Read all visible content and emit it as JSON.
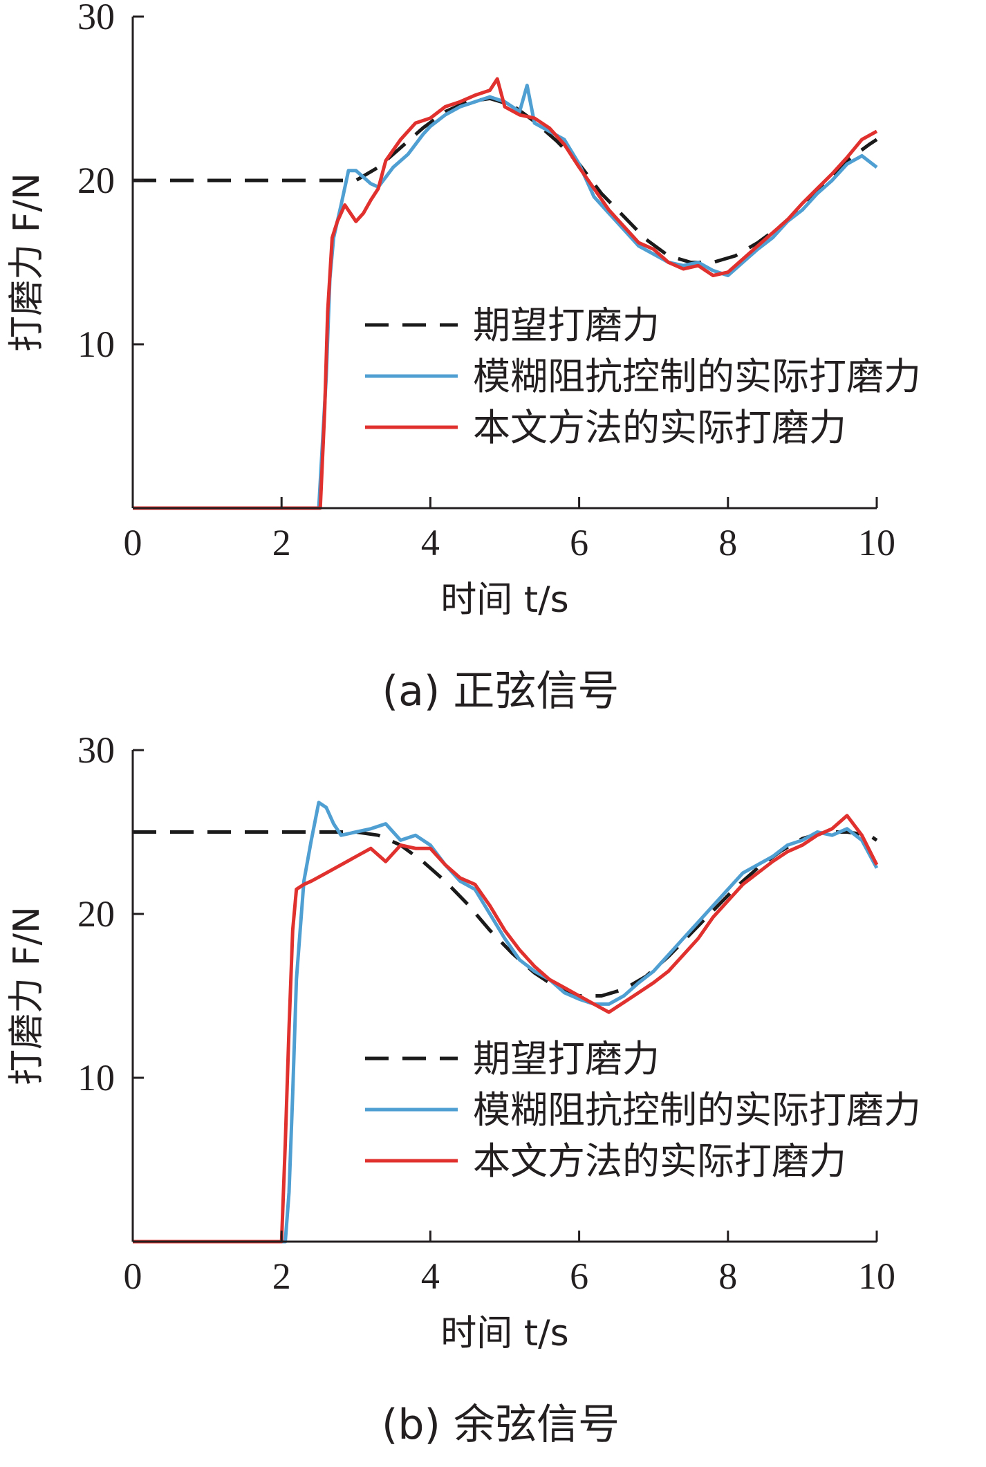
{
  "chart_data": [
    {
      "type": "line",
      "caption": "(a) 正弦信号",
      "xlabel": "时间 t/s",
      "ylabel": "打磨力 F/N",
      "xlim": [
        0,
        10
      ],
      "ylim": [
        0,
        30
      ],
      "xticks": [
        "0",
        "2",
        "4",
        "6",
        "8",
        "10"
      ],
      "yticks": [
        "10",
        "20",
        "30"
      ],
      "legend_position": "center-right",
      "series": [
        {
          "name": "期望打磨力",
          "color": "#1a1a1a",
          "style": "dashed",
          "x": [
            0,
            3.0,
            3.3,
            3.6,
            3.9,
            4.2,
            4.5,
            4.8,
            5.1,
            5.4,
            5.7,
            6.0,
            6.3,
            6.6,
            6.9,
            7.2,
            7.5,
            7.8,
            8.1,
            8.4,
            8.7,
            9.0,
            9.3,
            9.6,
            9.9,
            10.0
          ],
          "y": [
            20,
            20,
            20.8,
            22.0,
            23.2,
            24.2,
            24.8,
            25.0,
            24.6,
            23.6,
            22.4,
            21.0,
            19.2,
            17.8,
            16.4,
            15.4,
            15.0,
            15.0,
            15.4,
            16.2,
            17.2,
            18.4,
            19.8,
            21.2,
            22.2,
            22.5
          ]
        },
        {
          "name": "模糊阻抗控制的实际打磨力",
          "color": "#4f9fd3",
          "style": "solid",
          "x": [
            0,
            2.5,
            2.6,
            2.65,
            2.7,
            2.8,
            2.9,
            3.0,
            3.1,
            3.2,
            3.3,
            3.5,
            3.7,
            3.9,
            4.0,
            4.2,
            4.4,
            4.6,
            4.8,
            5.0,
            5.2,
            5.3,
            5.4,
            5.6,
            5.8,
            6.0,
            6.2,
            6.4,
            6.6,
            6.8,
            7.0,
            7.2,
            7.4,
            7.6,
            7.8,
            8.0,
            8.2,
            8.4,
            8.6,
            8.8,
            9.0,
            9.2,
            9.4,
            9.6,
            9.8,
            10.0
          ],
          "y": [
            0,
            0,
            8,
            14,
            16.5,
            18.5,
            20.6,
            20.6,
            20.2,
            19.8,
            19.6,
            20.8,
            21.6,
            22.8,
            23.3,
            24.0,
            24.5,
            24.8,
            25.1,
            24.8,
            24.2,
            25.8,
            23.5,
            23.0,
            22.5,
            21.0,
            19.0,
            18.0,
            17.0,
            16.0,
            15.5,
            15.0,
            14.8,
            15.0,
            14.5,
            14.2,
            15.0,
            15.8,
            16.5,
            17.5,
            18.2,
            19.2,
            20.0,
            21.0,
            21.5,
            20.8
          ]
        },
        {
          "name": "本文方法的实际打磨力",
          "color": "#e0312e",
          "style": "solid",
          "x": [
            0,
            2.52,
            2.58,
            2.62,
            2.68,
            2.75,
            2.85,
            3.0,
            3.1,
            3.2,
            3.3,
            3.4,
            3.6,
            3.8,
            4.0,
            4.2,
            4.4,
            4.6,
            4.8,
            4.9,
            5.0,
            5.2,
            5.4,
            5.6,
            5.8,
            6.0,
            6.2,
            6.4,
            6.6,
            6.8,
            7.0,
            7.2,
            7.4,
            7.6,
            7.8,
            8.0,
            8.2,
            8.4,
            8.6,
            8.8,
            9.0,
            9.2,
            9.4,
            9.6,
            9.8,
            10.0
          ],
          "y": [
            0,
            0,
            6,
            12,
            16.5,
            17.5,
            18.5,
            17.5,
            18.0,
            18.8,
            19.5,
            21.2,
            22.5,
            23.5,
            23.8,
            24.5,
            24.8,
            25.2,
            25.5,
            26.2,
            24.5,
            24.0,
            23.8,
            23.2,
            22.2,
            20.8,
            19.5,
            18.2,
            17.2,
            16.2,
            15.8,
            15.0,
            14.6,
            14.8,
            14.2,
            14.4,
            15.2,
            16.0,
            16.8,
            17.6,
            18.6,
            19.5,
            20.4,
            21.4,
            22.5,
            23.0
          ]
        }
      ]
    },
    {
      "type": "line",
      "caption": "(b) 余弦信号",
      "xlabel": "时间 t/s",
      "ylabel": "打磨力 F/N",
      "xlim": [
        0,
        10
      ],
      "ylim": [
        0,
        30
      ],
      "xticks": [
        "0",
        "2",
        "4",
        "6",
        "8",
        "10"
      ],
      "yticks": [
        "10",
        "20",
        "30"
      ],
      "legend_position": "center-right",
      "series": [
        {
          "name": "期望打磨力",
          "color": "#1a1a1a",
          "style": "dashed",
          "x": [
            0,
            3.0,
            3.3,
            3.6,
            3.9,
            4.2,
            4.5,
            4.8,
            5.1,
            5.4,
            5.7,
            6.0,
            6.3,
            6.6,
            6.9,
            7.2,
            7.5,
            7.8,
            8.1,
            8.4,
            8.7,
            9.0,
            9.3,
            9.6,
            9.9,
            10.0
          ],
          "y": [
            25,
            25,
            24.8,
            24.2,
            23.2,
            22.0,
            20.6,
            19.0,
            17.6,
            16.4,
            15.5,
            15.0,
            15.0,
            15.4,
            16.2,
            17.4,
            18.8,
            20.2,
            21.6,
            22.8,
            23.8,
            24.6,
            25.0,
            25.0,
            24.8,
            24.5
          ]
        },
        {
          "name": "模糊阻抗控制的实际打磨力",
          "color": "#4f9fd3",
          "style": "solid",
          "x": [
            0,
            2.05,
            2.1,
            2.15,
            2.2,
            2.3,
            2.4,
            2.5,
            2.6,
            2.7,
            2.8,
            3.0,
            3.2,
            3.4,
            3.6,
            3.8,
            4.0,
            4.2,
            4.4,
            4.6,
            4.8,
            5.0,
            5.2,
            5.4,
            5.6,
            5.8,
            6.0,
            6.2,
            6.4,
            6.6,
            6.8,
            7.0,
            7.2,
            7.4,
            7.6,
            7.8,
            8.0,
            8.2,
            8.4,
            8.6,
            8.8,
            9.0,
            9.2,
            9.4,
            9.6,
            9.8,
            10.0
          ],
          "y": [
            0,
            0,
            3,
            9,
            16,
            22,
            24.5,
            26.8,
            26.5,
            25.5,
            24.8,
            25.0,
            25.2,
            25.5,
            24.5,
            24.8,
            24.2,
            23.0,
            22.0,
            21.5,
            20.0,
            18.5,
            17.2,
            16.5,
            16.0,
            15.2,
            14.8,
            14.5,
            14.5,
            15.0,
            15.8,
            16.5,
            17.5,
            18.5,
            19.5,
            20.5,
            21.5,
            22.5,
            23.0,
            23.5,
            24.2,
            24.5,
            25.0,
            24.8,
            25.2,
            24.5,
            22.8
          ]
        },
        {
          "name": "本文方法的实际打磨力",
          "color": "#e0312e",
          "style": "solid",
          "x": [
            0,
            2.0,
            2.05,
            2.1,
            2.15,
            2.2,
            2.3,
            2.4,
            2.6,
            2.8,
            3.0,
            3.2,
            3.4,
            3.6,
            3.8,
            4.0,
            4.2,
            4.4,
            4.6,
            4.8,
            5.0,
            5.2,
            5.4,
            5.6,
            5.8,
            6.0,
            6.2,
            6.4,
            6.6,
            6.8,
            7.0,
            7.2,
            7.4,
            7.6,
            7.8,
            8.0,
            8.2,
            8.4,
            8.6,
            8.8,
            9.0,
            9.2,
            9.4,
            9.6,
            9.8,
            10.0
          ],
          "y": [
            0,
            0,
            6,
            13,
            19,
            21.5,
            21.8,
            22.0,
            22.5,
            23.0,
            23.5,
            24.0,
            23.2,
            24.2,
            24.0,
            24.0,
            23.0,
            22.2,
            21.8,
            20.5,
            19.0,
            17.8,
            16.8,
            16.0,
            15.5,
            15.0,
            14.5,
            14.0,
            14.6,
            15.2,
            15.8,
            16.5,
            17.5,
            18.5,
            19.8,
            20.8,
            21.8,
            22.5,
            23.2,
            23.8,
            24.2,
            24.8,
            25.2,
            26.0,
            24.8,
            23.0
          ]
        }
      ]
    }
  ]
}
